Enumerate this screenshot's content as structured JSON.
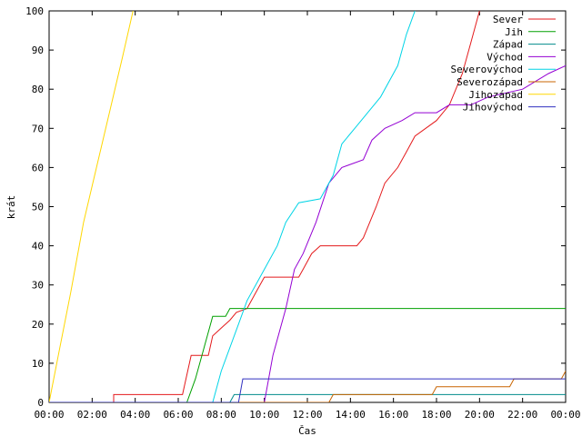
{
  "chart_data": {
    "type": "line",
    "title": "",
    "xlabel": "Čas",
    "ylabel": "krát",
    "xlim": [
      0,
      24
    ],
    "ylim": [
      0,
      100
    ],
    "x_ticks": [
      0,
      2,
      4,
      6,
      8,
      10,
      12,
      14,
      16,
      18,
      20,
      22,
      24
    ],
    "x_tick_labels": [
      "00:00",
      "02:00",
      "04:00",
      "06:00",
      "08:00",
      "10:00",
      "12:00",
      "14:00",
      "16:00",
      "18:00",
      "20:00",
      "22:00",
      "00:00"
    ],
    "y_ticks": [
      0,
      10,
      20,
      30,
      40,
      50,
      60,
      70,
      80,
      90,
      100
    ],
    "y_tick_labels": [
      "0",
      "10",
      "20",
      "30",
      "40",
      "50",
      "60",
      "70",
      "80",
      "90",
      "100"
    ],
    "grid": false,
    "legend_position": "top-right",
    "series": [
      {
        "name": "Sever",
        "color": "#e41a1c",
        "points": [
          [
            0,
            0
          ],
          [
            3.0,
            0
          ],
          [
            3.0,
            2
          ],
          [
            6.2,
            2
          ],
          [
            6.6,
            12
          ],
          [
            7.4,
            12
          ],
          [
            7.6,
            17
          ],
          [
            8.0,
            19
          ],
          [
            8.4,
            21
          ],
          [
            8.7,
            23
          ],
          [
            9.2,
            24
          ],
          [
            9.6,
            28
          ],
          [
            10.0,
            32
          ],
          [
            11.6,
            32
          ],
          [
            11.8,
            34
          ],
          [
            12.2,
            38
          ],
          [
            12.6,
            40
          ],
          [
            14.3,
            40
          ],
          [
            14.6,
            42
          ],
          [
            15.2,
            50
          ],
          [
            15.6,
            56
          ],
          [
            16.2,
            60
          ],
          [
            16.6,
            64
          ],
          [
            17.0,
            68
          ],
          [
            18.0,
            72
          ],
          [
            18.6,
            76
          ],
          [
            19.2,
            84
          ],
          [
            19.6,
            92
          ],
          [
            20.0,
            100
          ]
        ]
      },
      {
        "name": "Jih",
        "color": "#00a000",
        "points": [
          [
            0,
            0
          ],
          [
            6.4,
            0
          ],
          [
            6.8,
            6
          ],
          [
            7.2,
            14
          ],
          [
            7.6,
            22
          ],
          [
            8.2,
            22
          ],
          [
            8.4,
            24
          ],
          [
            24,
            24
          ]
        ]
      },
      {
        "name": "Západ",
        "color": "#008b8b",
        "points": [
          [
            0,
            0
          ],
          [
            8.4,
            0
          ],
          [
            8.6,
            2
          ],
          [
            24,
            2
          ]
        ]
      },
      {
        "name": "Východ",
        "color": "#9400d3",
        "points": [
          [
            0,
            0
          ],
          [
            10.0,
            0
          ],
          [
            10.4,
            12
          ],
          [
            11.0,
            24
          ],
          [
            11.4,
            34
          ],
          [
            11.8,
            38
          ],
          [
            12.4,
            46
          ],
          [
            13.0,
            56
          ],
          [
            13.6,
            60
          ],
          [
            14.6,
            62
          ],
          [
            15.0,
            67
          ],
          [
            15.6,
            70
          ],
          [
            16.4,
            72
          ],
          [
            17.0,
            74
          ],
          [
            18.0,
            74
          ],
          [
            18.6,
            76
          ],
          [
            19.6,
            76
          ],
          [
            20.4,
            78
          ],
          [
            22.0,
            80
          ],
          [
            23.2,
            84
          ],
          [
            24.0,
            86
          ]
        ]
      },
      {
        "name": "Severovýchod",
        "color": "#00d4e6",
        "points": [
          [
            0,
            0
          ],
          [
            7.6,
            0
          ],
          [
            8.0,
            8
          ],
          [
            8.4,
            14
          ],
          [
            8.8,
            20
          ],
          [
            9.2,
            26
          ],
          [
            9.6,
            30
          ],
          [
            10.0,
            34
          ],
          [
            10.6,
            40
          ],
          [
            11.0,
            46
          ],
          [
            11.6,
            51
          ],
          [
            12.6,
            52
          ],
          [
            13.2,
            58
          ],
          [
            13.6,
            66
          ],
          [
            14.2,
            70
          ],
          [
            14.8,
            74
          ],
          [
            15.4,
            78
          ],
          [
            16.2,
            86
          ],
          [
            16.6,
            94
          ],
          [
            17.0,
            100
          ]
        ]
      },
      {
        "name": "Severozápad",
        "color": "#c86400",
        "points": [
          [
            0,
            0
          ],
          [
            13.0,
            0
          ],
          [
            13.2,
            2
          ],
          [
            17.8,
            2
          ],
          [
            18.0,
            4
          ],
          [
            21.4,
            4
          ],
          [
            21.6,
            6
          ],
          [
            23.8,
            6
          ],
          [
            24,
            8
          ]
        ]
      },
      {
        "name": "Jihozápad",
        "color": "#ffd700",
        "points": [
          [
            0,
            0
          ],
          [
            0.5,
            14
          ],
          [
            1.0,
            28
          ],
          [
            1.6,
            46
          ],
          [
            2.2,
            60
          ],
          [
            2.8,
            74
          ],
          [
            3.4,
            88
          ],
          [
            3.9,
            100
          ]
        ]
      },
      {
        "name": "Jihovýchod",
        "color": "#3030c0",
        "points": [
          [
            0,
            0
          ],
          [
            8.8,
            0
          ],
          [
            9.0,
            6
          ],
          [
            24,
            6
          ]
        ]
      }
    ]
  }
}
